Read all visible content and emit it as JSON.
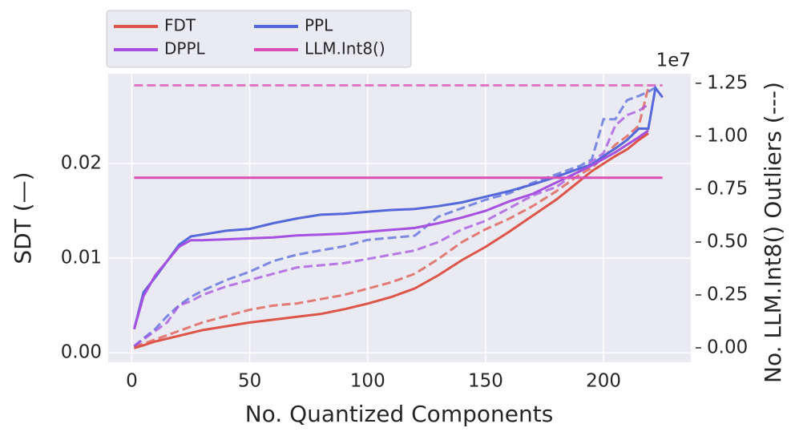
{
  "chart_data": {
    "type": "line",
    "xlabel": "No. Quantized Components",
    "ylabel": "SDT (—)",
    "y2label": "No. LLM.Int8() Outliers (---)",
    "y2_offset_label": "1e7",
    "x": [
      1,
      5,
      10,
      15,
      20,
      25,
      30,
      40,
      50,
      60,
      70,
      80,
      90,
      100,
      110,
      120,
      130,
      140,
      150,
      160,
      170,
      180,
      190,
      195,
      200,
      205,
      210,
      215,
      219,
      222,
      225
    ],
    "xlim": [
      -10,
      237
    ],
    "xticks": [
      0,
      50,
      100,
      150,
      200
    ],
    "ylim": [
      -0.001,
      0.0295
    ],
    "yticks": [
      {
        "value": 0,
        "label": "0.00"
      },
      {
        "value": 0.01,
        "label": "0.01"
      },
      {
        "value": 0.02,
        "label": "0.02"
      }
    ],
    "y2lim": [
      -0.068,
      1.295
    ],
    "y2ticks": [
      {
        "value": 0,
        "label": "0.00"
      },
      0.25,
      {
        "value": 0.5,
        "label": "0.50"
      },
      0.75,
      {
        "value": 1,
        "label": "1.00"
      },
      1.25
    ],
    "grid": true,
    "legend": "top-left",
    "series": [
      {
        "name": "FDT",
        "color": "#dd5549",
        "values": [
          0.0005,
          0.0008,
          0.0012,
          0.0015,
          0.0018,
          0.0021,
          0.0024,
          0.0028,
          0.0032,
          0.0035,
          0.0038,
          0.0041,
          0.0046,
          0.0052,
          0.0059,
          0.0068,
          0.0082,
          0.0098,
          0.0112,
          0.0128,
          0.0145,
          0.0162,
          0.0182,
          0.0192,
          0.02,
          0.0208,
          0.0215,
          0.0225,
          0.0232,
          null,
          null
        ],
        "y2_values": [
          0.005,
          0.02,
          0.04,
          0.06,
          0.08,
          0.1,
          0.12,
          0.15,
          0.18,
          0.2,
          0.21,
          0.23,
          0.25,
          0.28,
          0.31,
          0.35,
          0.42,
          0.5,
          0.56,
          0.61,
          0.67,
          0.74,
          0.82,
          0.85,
          0.9,
          0.96,
          1.0,
          1.05,
          1.23,
          null,
          null
        ]
      },
      {
        "name": "PPL",
        "color": "#5468dc",
        "values": [
          0.0025,
          0.0064,
          0.008,
          0.0097,
          0.0114,
          0.0123,
          0.0125,
          0.0129,
          0.0131,
          0.0137,
          0.0142,
          0.0146,
          0.0147,
          0.0149,
          0.0151,
          0.0152,
          0.0155,
          0.0159,
          0.0165,
          0.0171,
          0.0178,
          0.0186,
          0.0195,
          0.0199,
          0.0208,
          0.0216,
          0.0225,
          0.0237,
          0.0237,
          0.028,
          0.027
        ],
        "y2_values": [
          0.008,
          0.045,
          0.09,
          0.15,
          0.2,
          0.24,
          0.27,
          0.32,
          0.36,
          0.41,
          0.44,
          0.46,
          0.48,
          0.51,
          0.52,
          0.53,
          0.62,
          0.66,
          0.7,
          0.73,
          0.78,
          0.82,
          0.86,
          0.89,
          1.08,
          1.08,
          1.17,
          1.19,
          1.21,
          1.23,
          null
        ]
      },
      {
        "name": "DPPL",
        "color": "#a550e0",
        "values": [
          0.0025,
          0.006,
          0.0082,
          0.0097,
          0.0112,
          0.0119,
          0.0119,
          0.012,
          0.0121,
          0.0122,
          0.0124,
          0.0125,
          0.0126,
          0.0128,
          0.013,
          0.0132,
          0.0137,
          0.0143,
          0.015,
          0.016,
          0.0168,
          0.018,
          0.0192,
          0.0198,
          0.0205,
          0.0212,
          0.022,
          0.0228,
          0.0235,
          null,
          null
        ],
        "y2_values": [
          0.008,
          0.04,
          0.08,
          0.12,
          0.2,
          0.22,
          0.25,
          0.29,
          0.32,
          0.35,
          0.38,
          0.39,
          0.4,
          0.42,
          0.44,
          0.46,
          0.5,
          0.56,
          0.6,
          0.66,
          0.72,
          0.76,
          0.84,
          0.88,
          0.92,
          1.05,
          1.1,
          1.12,
          1.15,
          null,
          null
        ]
      },
      {
        "name": "LLM.Int8()",
        "color": "#d94fb5",
        "values": [
          0.0185,
          0.0185,
          0.0185,
          0.0185,
          0.0185,
          0.0185,
          0.0185,
          0.0185,
          0.0185,
          0.0185,
          0.0185,
          0.0185,
          0.0185,
          0.0185,
          0.0185,
          0.0185,
          0.0185,
          0.0185,
          0.0185,
          0.0185,
          0.0185,
          0.0185,
          0.0185,
          0.0185,
          0.0185,
          0.0185,
          0.0185,
          0.0185,
          0.0185,
          0.0185,
          0.0185
        ],
        "y2_values": [
          1.24,
          1.24,
          1.24,
          1.24,
          1.24,
          1.24,
          1.24,
          1.24,
          1.24,
          1.24,
          1.24,
          1.24,
          1.24,
          1.24,
          1.24,
          1.24,
          1.24,
          1.24,
          1.24,
          1.24,
          1.24,
          1.24,
          1.24,
          1.24,
          1.24,
          1.24,
          1.24,
          1.24,
          1.24,
          1.24,
          1.24
        ]
      }
    ]
  }
}
